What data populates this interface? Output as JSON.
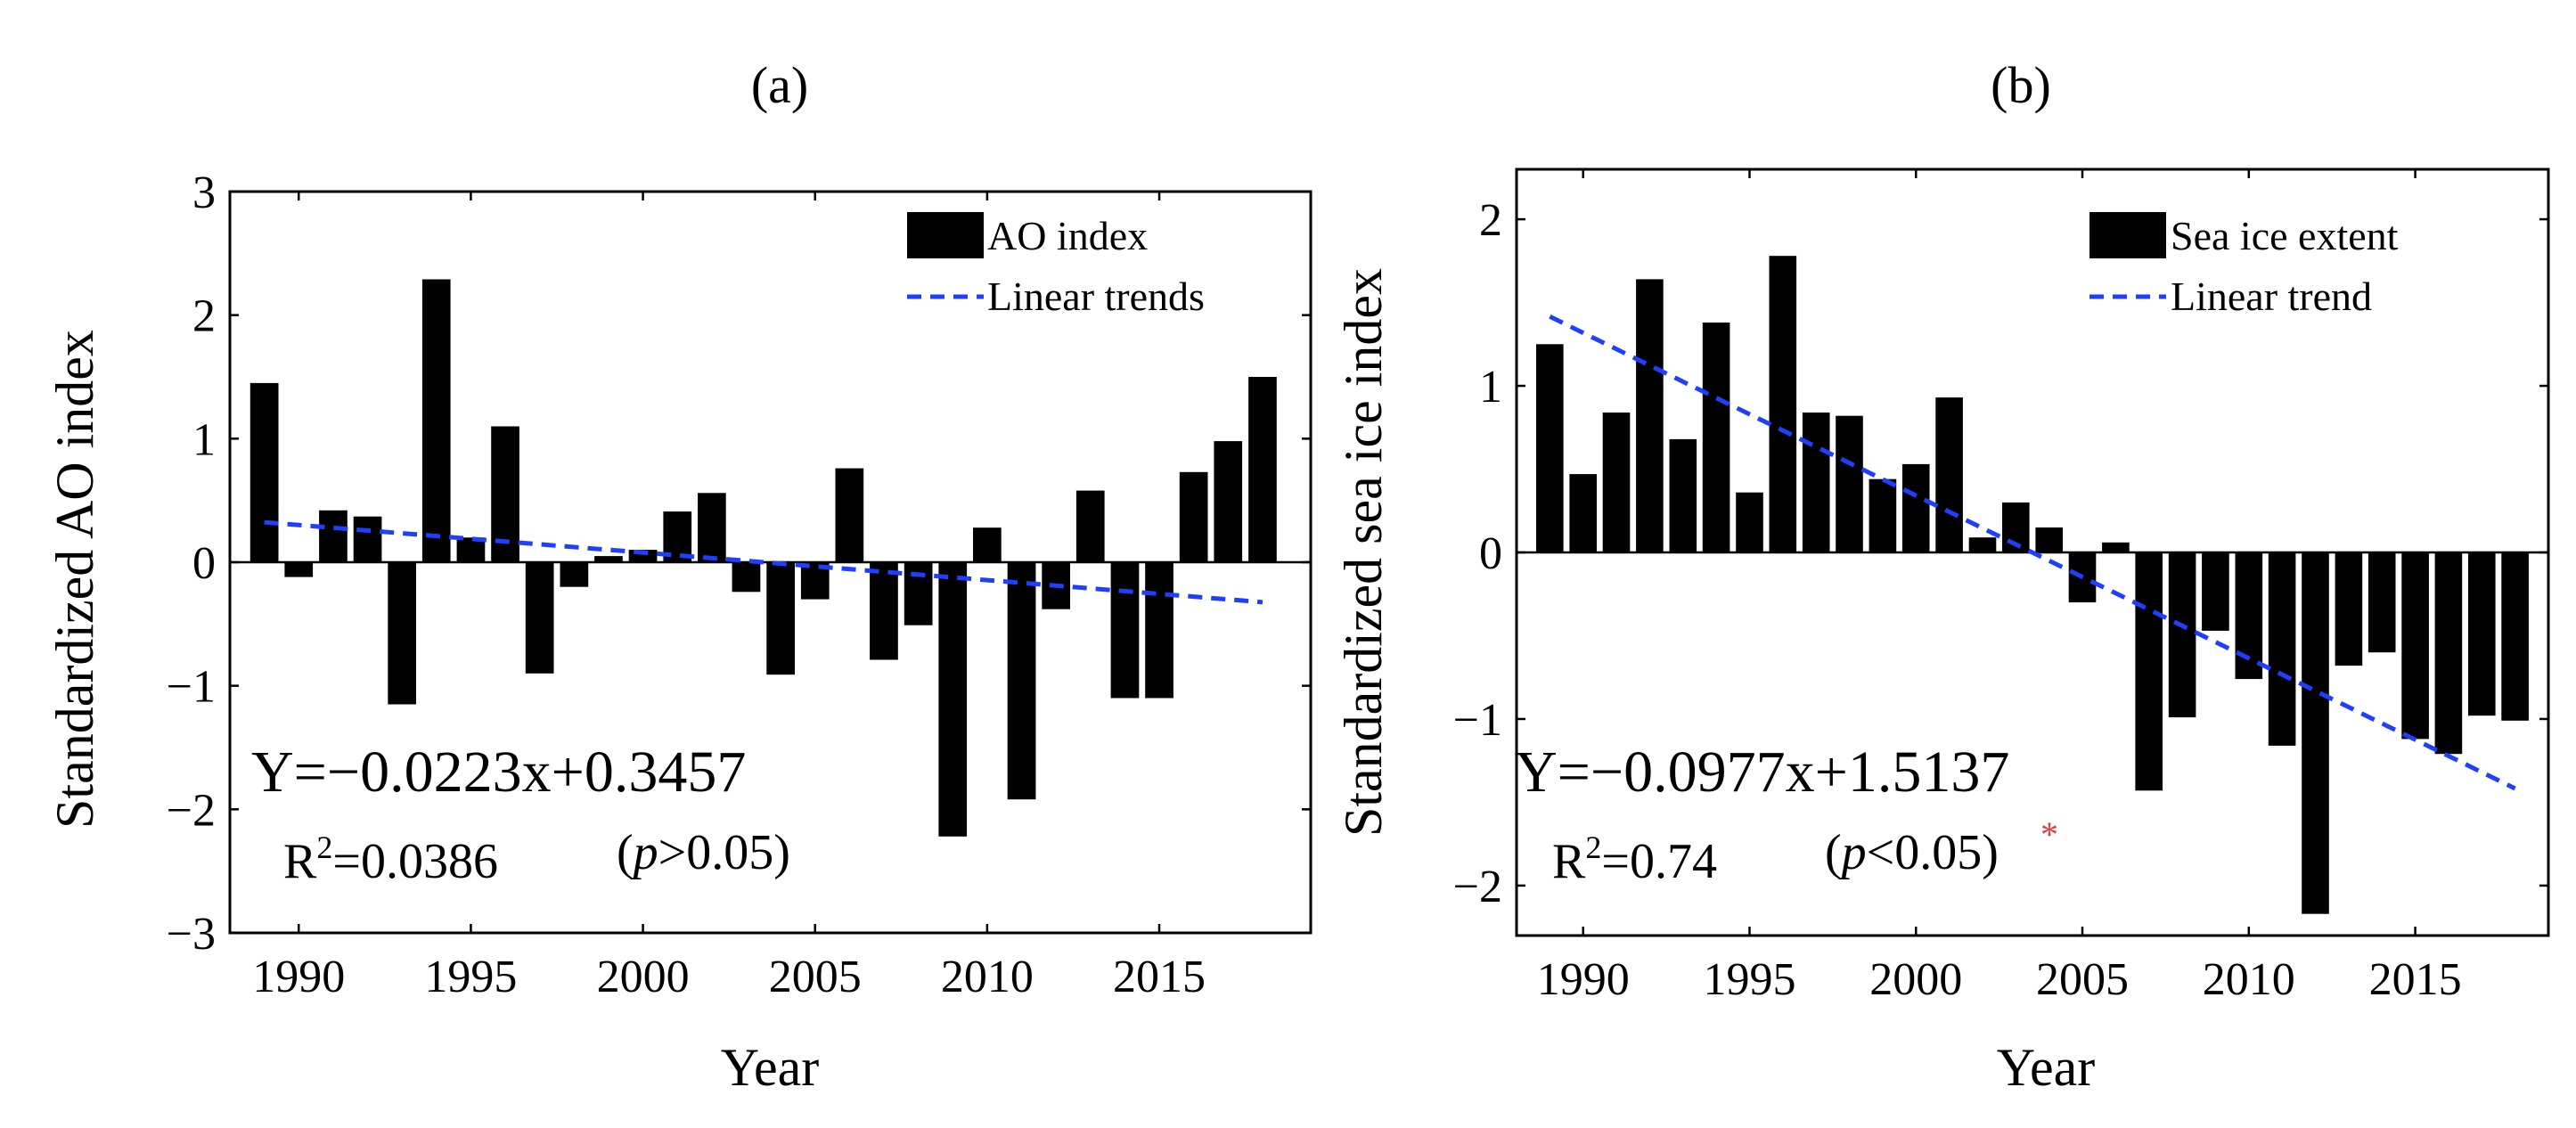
{
  "chart_data": [
    {
      "type": "bar",
      "panel_label": "(a)",
      "xlabel": "Year",
      "ylabel": "Standardized AO index",
      "xlim": [
        1988,
        2019.4
      ],
      "ylim": [
        -3,
        3
      ],
      "xticks": [
        1990,
        1995,
        2000,
        2005,
        2010,
        2015
      ],
      "yticks": [
        -3,
        -2,
        -1,
        0,
        1,
        2,
        3
      ],
      "xtick_labels": [
        "1990",
        "1995",
        "2000",
        "2005",
        "2010",
        "2015"
      ],
      "ytick_labels": [
        "−3",
        "−2",
        "−1",
        "0",
        "1",
        "2",
        "3"
      ],
      "years": [
        1989,
        1990,
        1991,
        1992,
        1993,
        1994,
        1995,
        1996,
        1997,
        1998,
        1999,
        2000,
        2001,
        2002,
        2003,
        2004,
        2005,
        2006,
        2007,
        2008,
        2009,
        2010,
        2011,
        2012,
        2013,
        2014,
        2015,
        2016,
        2017,
        2018
      ],
      "series": [
        {
          "name": "AO index",
          "values": [
            1.45,
            -0.12,
            0.42,
            0.37,
            -1.15,
            2.29,
            0.2,
            1.1,
            -0.9,
            -0.2,
            0.05,
            0.1,
            0.41,
            0.56,
            -0.24,
            -0.91,
            -0.3,
            0.76,
            -0.79,
            -0.51,
            -2.22,
            0.28,
            -1.92,
            -0.38,
            0.58,
            -1.1,
            -1.1,
            0.73,
            0.98,
            1.5
          ]
        }
      ],
      "trend": {
        "name": "Linear trends",
        "slope": -0.0223,
        "intercept": 0.3457,
        "x0": 1988,
        "color": "#1f3fff"
      },
      "legend_position": "top-right",
      "equation_text": "Y=−0.0223x+0.3457",
      "r2_prefix": "R",
      "r2_value_text": "=0.0386",
      "p_open": "(",
      "p_letter": "p",
      "p_rest": ">0.05)",
      "bar_color": "#000000"
    },
    {
      "type": "bar",
      "panel_label": "(b)",
      "xlabel": "Year",
      "ylabel": "Standardized sea ice index",
      "xlim": [
        1988,
        2019
      ],
      "ylim": [
        -2.3,
        2.3
      ],
      "xticks": [
        1990,
        1995,
        2000,
        2005,
        2010,
        2015
      ],
      "yticks": [
        -2,
        -1,
        0,
        1,
        2
      ],
      "xtick_labels": [
        "1990",
        "1995",
        "2000",
        "2005",
        "2010",
        "2015"
      ],
      "ytick_labels": [
        "−2",
        "−1",
        "0",
        "1",
        "2"
      ],
      "years": [
        1989,
        1990,
        1991,
        1992,
        1993,
        1994,
        1995,
        1996,
        1997,
        1998,
        1999,
        2000,
        2001,
        2002,
        2003,
        2004,
        2005,
        2006,
        2007,
        2008,
        2009,
        2010,
        2011,
        2012,
        2013,
        2014,
        2015,
        2016,
        2017,
        2018
      ],
      "series": [
        {
          "name": "Sea ice extent",
          "values": [
            1.25,
            0.47,
            0.84,
            1.64,
            0.68,
            1.38,
            0.36,
            1.78,
            0.84,
            0.82,
            0.44,
            0.53,
            0.93,
            0.09,
            0.3,
            0.15,
            -0.3,
            0.06,
            -1.43,
            -0.99,
            -0.47,
            -0.76,
            -1.16,
            -2.17,
            -0.68,
            -0.6,
            -1.12,
            -1.21,
            -0.98,
            -1.01
          ]
        }
      ],
      "trend": {
        "name": "Linear trend",
        "slope": -0.0977,
        "intercept": 1.5137,
        "x0": 1988,
        "color": "#1f3fff"
      },
      "legend_position": "top-right",
      "equation_text": "Y=−0.0977x+1.5137",
      "r2_prefix": "R",
      "r2_value_text": "=0.74",
      "p_open": "(",
      "p_letter": "p",
      "p_rest": "<0.05)",
      "significance_mark": "*",
      "bar_color": "#000000"
    }
  ],
  "r2_superscript": "2"
}
